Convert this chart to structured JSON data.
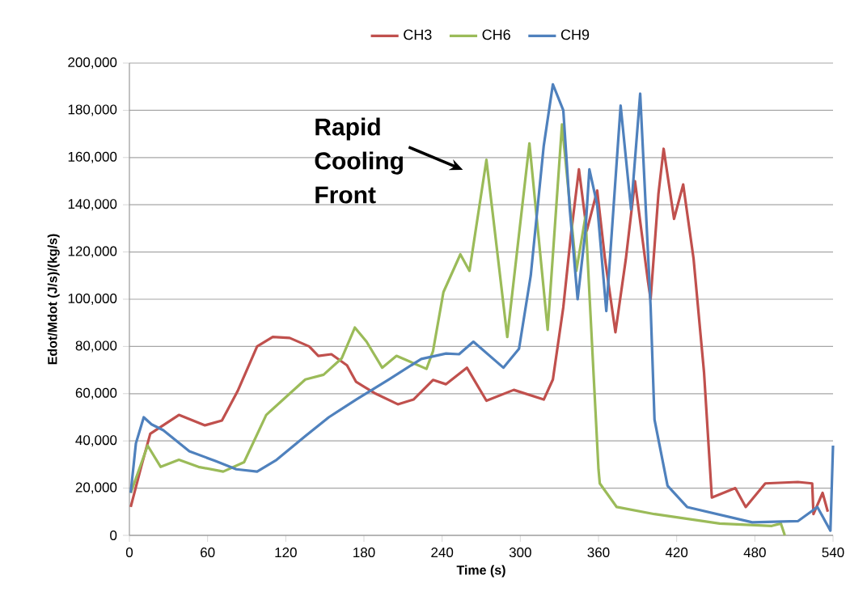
{
  "chart_data": {
    "type": "line",
    "xlabel": "Time (s)",
    "ylabel": "Edot/Mdot (J/s)/(kg/s)",
    "xlim": [
      0,
      540
    ],
    "xticks": [
      0,
      60,
      120,
      180,
      240,
      300,
      360,
      420,
      480,
      540
    ],
    "ylim": [
      0,
      200000
    ],
    "yticks": [
      {
        "value": 0,
        "label": "0"
      },
      {
        "value": 20000,
        "label": "20,000"
      },
      {
        "value": 40000,
        "label": "40,000"
      },
      {
        "value": 60000,
        "label": "60,000"
      },
      {
        "value": 80000,
        "label": "80,000"
      },
      {
        "value": 100000,
        "label": "100,000"
      },
      {
        "value": 120000,
        "label": "120,000"
      },
      {
        "value": 140000,
        "label": "140,000"
      },
      {
        "value": 160000,
        "label": "160,000"
      },
      {
        "value": 180000,
        "label": "180,000"
      },
      {
        "value": 200000,
        "label": "200,000"
      }
    ],
    "grid": "y",
    "legend": "top",
    "annotations": [
      "Rapid Cooling Front"
    ],
    "series": [
      {
        "name": "CH3",
        "color": "#c0504d",
        "x": [
          1,
          9,
          16,
          38,
          58,
          71,
          83,
          98,
          110,
          123,
          138,
          145,
          155,
          167,
          174,
          180,
          189,
          206,
          218,
          233,
          243,
          259,
          274,
          295,
          318,
          325,
          333,
          339,
          345,
          351,
          359,
          365,
          373,
          381,
          388,
          398,
          400,
          406,
          410,
          418,
          425,
          433,
          441,
          447,
          465,
          473,
          488,
          513,
          524,
          525,
          532,
          536
        ],
        "values": [
          12000,
          29000,
          43000,
          51000,
          46600,
          48600,
          61000,
          80000,
          84000,
          83600,
          80000,
          76000,
          76700,
          72000,
          65000,
          63000,
          60000,
          55500,
          57500,
          65800,
          64000,
          71000,
          57000,
          61600,
          57500,
          66000,
          96600,
          128000,
          155000,
          129000,
          146000,
          117000,
          86000,
          117000,
          150000,
          107500,
          100000,
          144500,
          163700,
          134000,
          148600,
          117000,
          69000,
          16000,
          20000,
          12000,
          22000,
          22600,
          22000,
          9000,
          18000,
          10000
        ]
      },
      {
        "name": "CH6",
        "color": "#9bbb59",
        "x": [
          1,
          14,
          24,
          38,
          53,
          72,
          88,
          105,
          123,
          135,
          149,
          163,
          173,
          182,
          194,
          205,
          228,
          233,
          241,
          254,
          261,
          274,
          290,
          307,
          321,
          332,
          343,
          350,
          360,
          361,
          374,
          403,
          453,
          493,
          500,
          503
        ],
        "values": [
          18000,
          38000,
          29000,
          32000,
          29000,
          27000,
          31000,
          51000,
          60000,
          66000,
          68000,
          75000,
          88000,
          82000,
          71000,
          76000,
          70500,
          78000,
          103000,
          119000,
          112000,
          159000,
          84000,
          166000,
          87000,
          174000,
          112000,
          135000,
          28000,
          22000,
          12000,
          9000,
          5000,
          4000,
          5000,
          0
        ]
      },
      {
        "name": "CH9",
        "color": "#4f81bd",
        "x": [
          1,
          5,
          11,
          17,
          26,
          46,
          66,
          82,
          98,
          113,
          135,
          153,
          174,
          199,
          224,
          243,
          253,
          264,
          287,
          299,
          308,
          318,
          325,
          333,
          338,
          344,
          350,
          353,
          359,
          366,
          377,
          385,
          392,
          400,
          403,
          413,
          428,
          478,
          513,
          528,
          538,
          540
        ],
        "values": [
          18000,
          39000,
          50000,
          47000,
          44500,
          35600,
          31500,
          28000,
          27000,
          32000,
          42000,
          50000,
          57500,
          66000,
          74700,
          77000,
          76700,
          82000,
          71000,
          79000,
          110000,
          165000,
          191000,
          180000,
          138000,
          100000,
          129000,
          155000,
          140000,
          95000,
          182000,
          138000,
          187000,
          97000,
          49000,
          21000,
          12000,
          5500,
          6000,
          12000,
          2000,
          38000
        ]
      }
    ]
  }
}
